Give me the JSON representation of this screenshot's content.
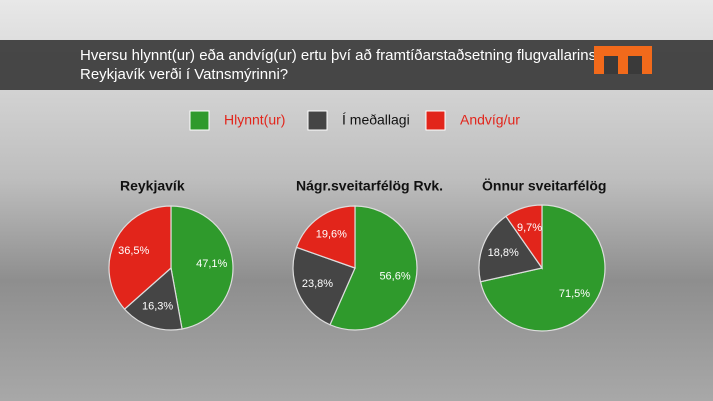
{
  "header": {
    "title_lines": [
      "Hversu hlynnt(ur) eða andvíg(ur) ertu því að framtíðarstaðsetning flugvallarins í",
      "Reykjavík verði í Vatnsmýrinni?"
    ]
  },
  "chart_data": [
    {
      "type": "pie",
      "title": "Reykjavík",
      "categories": [
        "Hlynnt(ur)",
        "Í meðallagi",
        "Andvíg/ur"
      ],
      "colors": [
        "#2f9a2c",
        "#454545",
        "#e2251b"
      ],
      "values": [
        47.1,
        16.3,
        36.5
      ],
      "value_labels": [
        "47,1%",
        "16,3%",
        "36,5%"
      ]
    },
    {
      "type": "pie",
      "title": "Nágr.sveitarfélög Rvk.",
      "categories": [
        "Hlynnt(ur)",
        "Í meðallagi",
        "Andvíg/ur"
      ],
      "colors": [
        "#2f9a2c",
        "#454545",
        "#e2251b"
      ],
      "values": [
        56.6,
        23.8,
        19.6
      ],
      "value_labels": [
        "56,6%",
        "23,8%",
        "19,6%"
      ]
    },
    {
      "type": "pie",
      "title": "Önnur sveitarfélög",
      "categories": [
        "Hlynnt(ur)",
        "Í meðallagi",
        "Andvíg/ur"
      ],
      "colors": [
        "#2f9a2c",
        "#454545",
        "#e2251b"
      ],
      "values": [
        71.5,
        18.8,
        9.7
      ],
      "value_labels": [
        "71,5%",
        "18,8%",
        "9,7%"
      ]
    }
  ]
}
